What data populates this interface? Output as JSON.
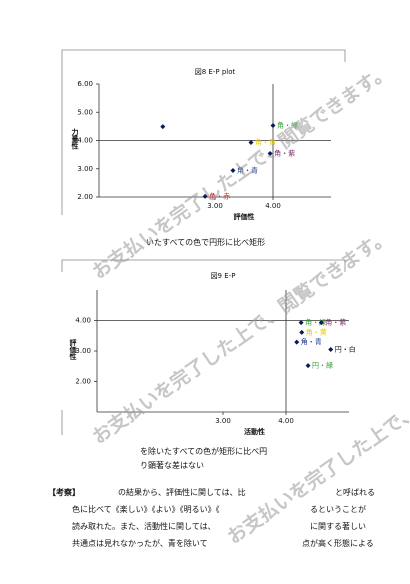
{
  "chart_data": [
    {
      "type": "scatter",
      "title": "図8 E-P plot",
      "x_label": "評価性",
      "y_label": "力量性",
      "xlim": [
        1,
        5
      ],
      "ylim": [
        2,
        6
      ],
      "xticks": [
        {
          "value": 3,
          "label": "3.00"
        },
        {
          "value": 4,
          "label": "4.00"
        }
      ],
      "yticks": [
        {
          "value": 2,
          "label": "2.00"
        },
        {
          "value": 3,
          "label": "3.00"
        },
        {
          "value": 4,
          "label": "4.00"
        },
        {
          "value": 5,
          "label": "5.00"
        },
        {
          "value": 6,
          "label": "6.00"
        }
      ],
      "cross": [
        4,
        4
      ],
      "marker_color": "#0a1a5a",
      "x": [
        2.1,
        4.0,
        3.62,
        3.95,
        3.31,
        2.83
      ],
      "y": [
        4.49,
        4.53,
        3.93,
        3.54,
        2.94,
        2.02
      ],
      "point_labels": [
        null,
        "角・緑",
        "角・黄",
        "角・紫",
        "角・青",
        "角・赤"
      ],
      "label_colors": [
        "#1a3a8a",
        "#2e9e2e",
        "#e6c800",
        "#7a2a6a",
        "#1a3a8a",
        "#d02020"
      ]
    },
    {
      "type": "scatter",
      "title": "図9 E-P",
      "x_label": "活動性",
      "y_label": "評価性",
      "xlim": [
        1,
        5
      ],
      "ylim": [
        1,
        5
      ],
      "xticks": [
        {
          "value": 3,
          "label": "3.00"
        },
        {
          "value": 4,
          "label": "4.00"
        }
      ],
      "yticks": [
        {
          "value": 2,
          "label": "2.00"
        },
        {
          "value": 3,
          "label": "3.00"
        },
        {
          "value": 4,
          "label": "4.00"
        }
      ],
      "cross": [
        4,
        4
      ],
      "marker_color": "#0a1a5a",
      "x": [
        4.24,
        4.56,
        4.25,
        4.17,
        4.71,
        4.35
      ],
      "y": [
        3.93,
        3.93,
        3.61,
        3.29,
        3.05,
        2.52
      ],
      "point_labels": [
        "角・緑",
        "角・紫",
        "角・黄",
        "角・青",
        "円・白",
        "円・緑"
      ],
      "label_colors": [
        "#2e9e2e",
        "#7a2a6a",
        "#e6c800",
        "#1a3a8a",
        "#111111",
        "#2e9e2e"
      ]
    }
  ],
  "figure8_caption": "いたすべての色で円形に比べ矩形",
  "figure9_caption": [
    "を除いたすべての色が矩形に比べ円",
    "り顕著な差はない"
  ],
  "consideration_heading": "【考察】",
  "consideration_lines": [
    "の結果から、評価性に関しては、比",
    "と呼ばれる",
    "色に比べて《楽しい》《よい》《明るい》《",
    "るということが",
    "読み取れた。また、活動性に関しては、",
    "に関する著しい",
    "共通点は見れなかったが、青を除いて",
    "点が高く形態による"
  ],
  "watermark": "お支払いを完了した上で、閲覧できます。"
}
